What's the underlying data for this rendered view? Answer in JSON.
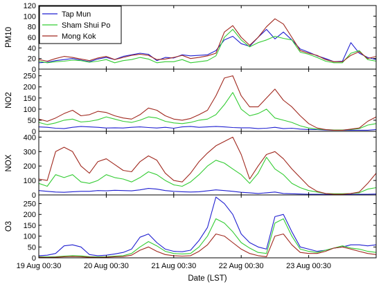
{
  "chart_data": {
    "type": "line",
    "xlabel": "Date (LST)",
    "x_ticks": [
      "19 Aug 00:30",
      "20 Aug 00:30",
      "21 Aug 00:30",
      "22 Aug 00:30",
      "23 Aug 00:30"
    ],
    "series_names": [
      "Tap Mun",
      "Sham Shui Po",
      "Mong Kok"
    ],
    "colors": {
      "Tap Mun": "#1f1fd0",
      "Sham Shui Po": "#33cc33",
      "Mong Kok": "#a0281e"
    },
    "grid": false,
    "legend": "top-left",
    "x_hours": [
      0,
      3,
      6,
      9,
      12,
      15,
      18,
      21,
      24,
      27,
      30,
      33,
      36,
      39,
      42,
      45,
      48,
      51,
      54,
      57,
      60,
      63,
      66,
      69,
      72,
      75,
      78,
      81,
      84,
      87,
      90,
      93,
      96,
      99,
      102,
      105,
      108,
      111,
      114,
      117,
      120
    ],
    "panels": [
      {
        "ylabel": "PM10",
        "ylim": [
          0,
          120
        ],
        "yticks": [
          0,
          20,
          40,
          60,
          80,
          100,
          120
        ],
        "series": [
          {
            "name": "Tap Mun",
            "values": [
              12,
              13,
              16,
              18,
              20,
              17,
              14,
              19,
              22,
              18,
              24,
              27,
              30,
              28,
              16,
              22,
              21,
              27,
              25,
              26,
              27,
              35,
              55,
              62,
              48,
              43,
              60,
              75,
              57,
              70,
              55,
              38,
              32,
              25,
              20,
              14,
              15,
              50,
              30,
              22,
              18
            ]
          },
          {
            "name": "Sham Shui Po",
            "values": [
              15,
              12,
              14,
              15,
              17,
              16,
              13,
              15,
              18,
              12,
              16,
              18,
              22,
              19,
              12,
              14,
              14,
              18,
              12,
              14,
              16,
              25,
              60,
              75,
              55,
              42,
              50,
              55,
              62,
              58,
              55,
              32,
              28,
              22,
              15,
              12,
              12,
              30,
              35,
              18,
              15
            ]
          },
          {
            "name": "Mong Kok",
            "values": [
              18,
              15,
              20,
              24,
              22,
              19,
              16,
              21,
              24,
              18,
              22,
              26,
              28,
              26,
              18,
              19,
              22,
              26,
              20,
              22,
              25,
              30,
              70,
              82,
              60,
              45,
              60,
              80,
              95,
              85,
              60,
              35,
              30,
              26,
              18,
              14,
              14,
              26,
              33,
              20,
              24
            ]
          }
        ]
      },
      {
        "ylabel": "NO2",
        "ylim": [
          0,
          280
        ],
        "yticks": [
          0,
          50,
          100,
          150,
          200,
          250
        ],
        "series": [
          {
            "name": "Tap Mun",
            "values": [
              20,
              18,
              14,
              12,
              18,
              22,
              20,
              18,
              15,
              16,
              15,
              18,
              20,
              17,
              15,
              18,
              14,
              20,
              22,
              18,
              20,
              22,
              20,
              17,
              16,
              16,
              12,
              14,
              18,
              12,
              14,
              10,
              8,
              8,
              6,
              5,
              5,
              5,
              5,
              5,
              8
            ]
          },
          {
            "name": "Sham Shui Po",
            "values": [
              40,
              30,
              38,
              50,
              55,
              42,
              45,
              52,
              65,
              55,
              45,
              40,
              50,
              65,
              60,
              45,
              38,
              35,
              40,
              50,
              55,
              75,
              120,
              175,
              100,
              70,
              80,
              100,
              60,
              50,
              40,
              25,
              15,
              10,
              8,
              6,
              6,
              8,
              12,
              28,
              35
            ]
          },
          {
            "name": "Mong Kok",
            "values": [
              55,
              45,
              60,
              80,
              95,
              70,
              75,
              90,
              85,
              70,
              60,
              55,
              75,
              105,
              95,
              70,
              55,
              50,
              58,
              75,
              95,
              160,
              240,
              250,
              160,
              110,
              110,
              150,
              190,
              140,
              110,
              70,
              35,
              15,
              8,
              5,
              5,
              10,
              15,
              45,
              65
            ]
          }
        ]
      },
      {
        "ylabel": "NOX",
        "ylim": [
          0,
          440
        ],
        "yticks": [
          0,
          100,
          200,
          300,
          400
        ],
        "series": [
          {
            "name": "Tap Mun",
            "values": [
              30,
              25,
              20,
              18,
              22,
              25,
              25,
              30,
              28,
              32,
              30,
              28,
              35,
              45,
              40,
              30,
              25,
              22,
              20,
              22,
              28,
              35,
              30,
              25,
              18,
              15,
              10,
              15,
              20,
              10,
              8,
              6,
              5,
              5,
              4,
              4,
              4,
              4,
              5,
              5,
              6
            ]
          },
          {
            "name": "Sham Shui Po",
            "values": [
              80,
              60,
              140,
              120,
              140,
              90,
              80,
              100,
              140,
              120,
              110,
              90,
              120,
              160,
              140,
              100,
              70,
              60,
              90,
              140,
              200,
              240,
              220,
              180,
              140,
              80,
              150,
              260,
              180,
              140,
              80,
              50,
              30,
              20,
              10,
              8,
              8,
              10,
              15,
              40,
              50
            ]
          },
          {
            "name": "Mong Kok",
            "values": [
              110,
              100,
              300,
              330,
              300,
              200,
              150,
              230,
              250,
              210,
              170,
              160,
              230,
              270,
              240,
              150,
              100,
              90,
              150,
              230,
              290,
              340,
              370,
              400,
              280,
              110,
              200,
              280,
              300,
              250,
              180,
              120,
              60,
              25,
              10,
              5,
              5,
              10,
              20,
              80,
              150
            ]
          }
        ]
      },
      {
        "ylabel": "O3",
        "ylim": [
          0,
          290
        ],
        "yticks": [
          0,
          50,
          100,
          150,
          200,
          250
        ],
        "series": [
          {
            "name": "Tap Mun",
            "values": [
              10,
              12,
              20,
              55,
              60,
              50,
              15,
              10,
              12,
              18,
              25,
              40,
              95,
              110,
              70,
              40,
              30,
              28,
              35,
              80,
              140,
              280,
              250,
              200,
              110,
              70,
              50,
              40,
              190,
              200,
              120,
              50,
              40,
              30,
              35,
              45,
              50,
              60,
              60,
              55,
              60
            ]
          },
          {
            "name": "Sham Shui Po",
            "values": [
              5,
              4,
              5,
              8,
              10,
              9,
              5,
              4,
              5,
              8,
              10,
              20,
              50,
              75,
              55,
              30,
              20,
              18,
              20,
              50,
              100,
              180,
              160,
              120,
              70,
              45,
              25,
              20,
              160,
              180,
              100,
              40,
              30,
              25,
              35,
              45,
              55,
              45,
              40,
              30,
              25
            ]
          },
          {
            "name": "Mong Kok",
            "values": [
              3,
              2,
              3,
              5,
              6,
              5,
              3,
              2,
              3,
              5,
              6,
              12,
              35,
              50,
              30,
              15,
              10,
              8,
              10,
              30,
              60,
              110,
              100,
              70,
              40,
              20,
              10,
              5,
              100,
              110,
              60,
              25,
              20,
              20,
              30,
              45,
              50,
              40,
              30,
              20,
              15
            ]
          }
        ]
      }
    ]
  }
}
